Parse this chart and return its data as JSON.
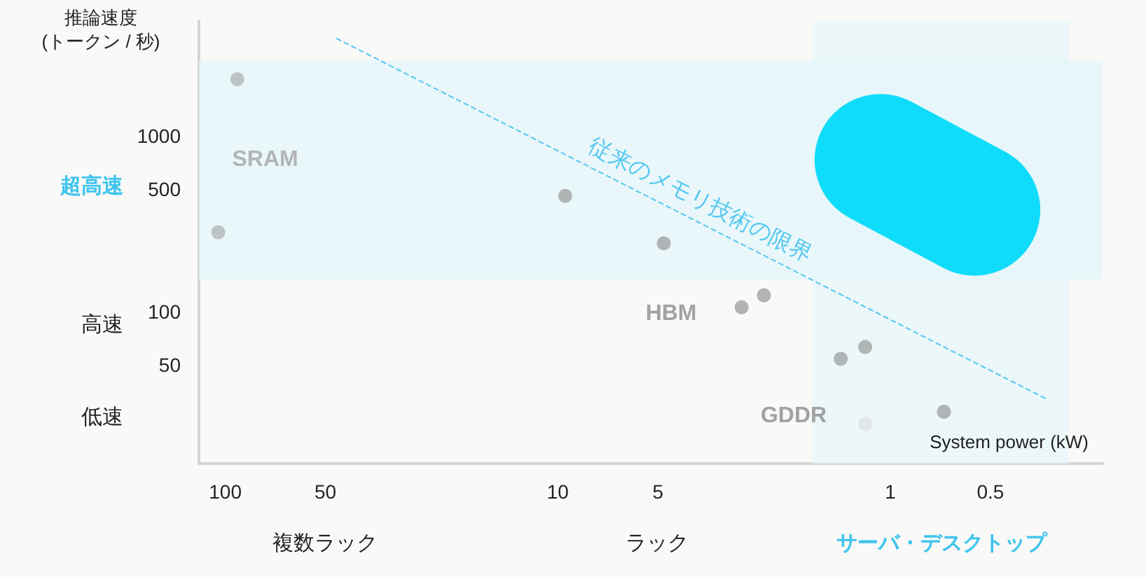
{
  "chart_data": {
    "type": "scatter",
    "ylabel": "推論速度\n(トークン / 秒)",
    "xlabel": "System power (kW)",
    "log": "xy",
    "xlim": [
      120,
      0.23
    ],
    "xticks": [
      100,
      50,
      10,
      5,
      1,
      0.5
    ],
    "ylim": [
      13.7,
      4500
    ],
    "yticks": [
      1000,
      500,
      100,
      50
    ],
    "grid": false,
    "legend": false,
    "marker": "circle",
    "series": [
      {
        "name": "SRAM",
        "color": "#b3b5b6",
        "x": [
          92,
          105
        ],
        "values": [
          2100,
          283
        ]
      },
      {
        "name": "HBM",
        "color": "#a0a2a3",
        "x": [
          9.5,
          4.8,
          2.8,
          2.4
        ],
        "values": [
          456,
          245,
          106,
          124
        ]
      },
      {
        "name": "GDDR",
        "color": "#a0a2a3",
        "colors": [
          "#a0a2a3",
          "#a0a2a3",
          "#e0e1e1",
          "#a0a2a3"
        ],
        "x": [
          1.41,
          1.19,
          1.19,
          0.69
        ],
        "values": [
          54,
          63,
          23,
          27
        ]
      },
      {
        "type": "line",
        "name": "従来のメモリ技術の限界",
        "color": "#55c8f0",
        "line_style": "dashed",
        "marker": "none",
        "x": [
          46.4,
          0.34
        ],
        "values": [
          3590,
          32
        ]
      }
    ],
    "bands": [
      {
        "axis": "y",
        "from": 152,
        "to": 2683,
        "color": "#e3f5fb"
      },
      {
        "axis": "x",
        "from": 1.71,
        "to": 0.29,
        "color": "#e6f5f9"
      }
    ],
    "annotations": [
      "超高速",
      "高速",
      "低速",
      "複数ラック",
      "ラック",
      "サーバ・デスクトップ"
    ]
  }
}
